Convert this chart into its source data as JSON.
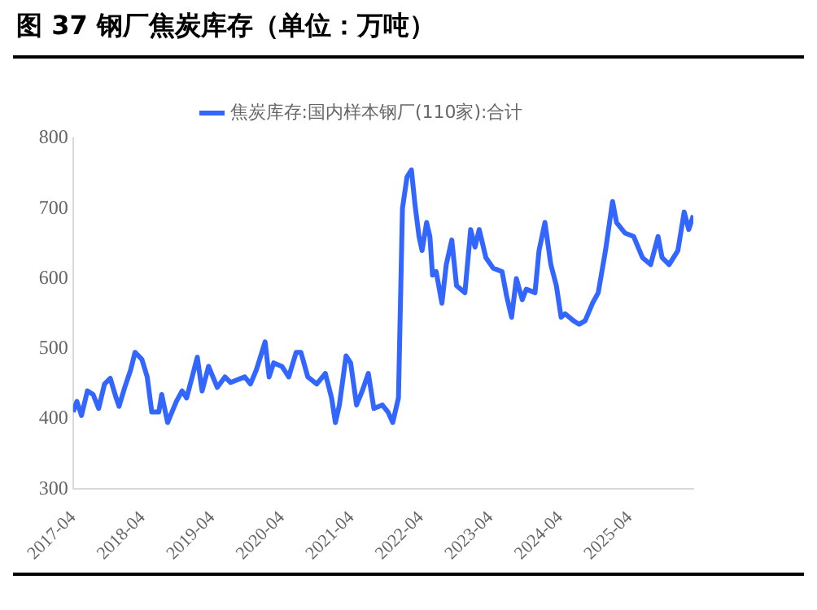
{
  "chart_data": {
    "type": "line",
    "title": "图 37 钢厂焦炭库存（单位：万吨）",
    "x": [
      "2017-04-01",
      "2017-04-21",
      "2017-05-15",
      "2017-06-15",
      "2017-07-15",
      "2017-08-13",
      "2017-09-13",
      "2017-10-13",
      "2017-11-13",
      "2017-11-28",
      "2017-12-28",
      "2018-01-28",
      "2018-02-20",
      "2018-03-28",
      "2018-04-25",
      "2018-05-19",
      "2018-06-25",
      "2018-07-10",
      "2018-08-10",
      "2018-09-25",
      "2018-10-25",
      "2018-11-18",
      "2018-12-22",
      "2019-01-13",
      "2019-02-07",
      "2019-03-13",
      "2019-04-28",
      "2019-06-07",
      "2019-07-07",
      "2019-09-19",
      "2019-10-19",
      "2019-11-19",
      "2020-01-04",
      "2020-01-25",
      "2020-02-18",
      "2020-04-01",
      "2020-05-07",
      "2020-06-15",
      "2020-07-10",
      "2020-08-15",
      "2020-10-01",
      "2020-11-15",
      "2020-12-18",
      "2021-01-07",
      "2021-01-28",
      "2021-03-04",
      "2021-03-28",
      "2021-04-28",
      "2021-05-28",
      "2021-06-29",
      "2021-07-28",
      "2021-09-10",
      "2021-10-10",
      "2021-11-04",
      "2021-12-04",
      "2021-12-25",
      "2022-01-18",
      "2022-02-10",
      "2022-03-01",
      "2022-03-22",
      "2022-04-07",
      "2022-05-01",
      "2022-05-18",
      "2022-06-01",
      "2022-06-20",
      "2022-07-20",
      "2022-08-12",
      "2022-09-10",
      "2022-10-05",
      "2022-11-18",
      "2022-12-18",
      "2023-01-10",
      "2023-02-01",
      "2023-03-08",
      "2023-04-15",
      "2023-06-01",
      "2023-06-25",
      "2023-07-21",
      "2023-08-15",
      "2023-09-15",
      "2023-10-06",
      "2023-11-21",
      "2023-12-12",
      "2024-01-12",
      "2024-02-12",
      "2024-03-12",
      "2024-04-06",
      "2024-04-27",
      "2024-06-10",
      "2024-07-10",
      "2024-08-10",
      "2024-09-18",
      "2024-10-18",
      "2024-11-25",
      "2025-01-01",
      "2025-01-22",
      "2025-03-07",
      "2025-04-22",
      "2025-06-07",
      "2025-07-20",
      "2025-08-28",
      "2025-09-18",
      "2025-10-25",
      "2025-12-10",
      "2026-01-12",
      "2026-02-05",
      "2026-03-01"
    ],
    "series": [
      {
        "name": "焦炭库存:国内样本钢厂(110家):合计",
        "color": "#3366ff",
        "values": [
          410,
          425,
          405,
          440,
          435,
          415,
          450,
          458,
          430,
          418,
          445,
          470,
          495,
          485,
          460,
          410,
          410,
          435,
          395,
          425,
          440,
          430,
          465,
          488,
          440,
          475,
          445,
          460,
          452,
          460,
          450,
          470,
          510,
          460,
          480,
          475,
          460,
          495,
          495,
          460,
          450,
          465,
          430,
          395,
          420,
          490,
          480,
          420,
          440,
          465,
          415,
          420,
          410,
          395,
          430,
          700,
          745,
          755,
          705,
          660,
          640,
          680,
          660,
          605,
          610,
          565,
          620,
          655,
          590,
          580,
          670,
          645,
          670,
          630,
          615,
          610,
          575,
          545,
          600,
          570,
          585,
          580,
          640,
          680,
          620,
          590,
          545,
          550,
          540,
          535,
          540,
          565,
          580,
          640,
          710,
          680,
          665,
          660,
          630,
          620,
          660,
          630,
          620,
          640,
          695,
          670,
          690
        ]
      }
    ],
    "xlim": [
      "2017-04-01",
      "2026-03-01"
    ],
    "xticks": [
      "2017-04",
      "2018-04",
      "2019-04",
      "2020-04",
      "2021-04",
      "2022-04",
      "2023-04",
      "2024-04",
      "2025-04"
    ],
    "ylim": [
      300,
      800
    ],
    "yticks": [
      300,
      400,
      500,
      600,
      700,
      800
    ],
    "grid": false,
    "legend": "top",
    "marker": "none",
    "line_style": "solid"
  }
}
